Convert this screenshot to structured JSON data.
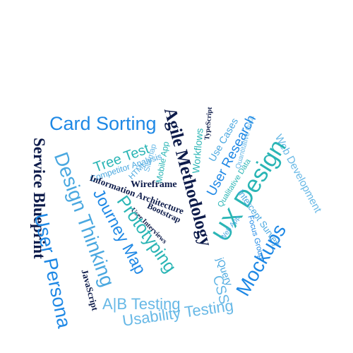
{
  "colors": {
    "navy": "#0d1b4a",
    "blue": "#1e88e5",
    "teal": "#2ab5b5",
    "sky": "#4aa8e0",
    "light_sky": "#67b8e6"
  },
  "words": [
    "Card Sorting",
    "Agile Methodology",
    "Service Blueprint",
    "Tree Test",
    "Competitor Analysis",
    "HTML",
    "Sitemap",
    "Mobile App",
    "TypeScript",
    "Workflows",
    "Use Cases",
    "Quantitative Data",
    "User Research",
    "Web Development",
    "UX Design",
    "Design Thinking",
    "Wireframe",
    "Information Architecture",
    "Bootstrap",
    "User Interviews",
    "Qualitative Data",
    "Web App",
    "Intercept Survey",
    "Focus Group",
    "Journey Map",
    "Prototyping",
    "User Blueprint",
    "User Persona",
    "Mockups",
    "jQuery",
    "JavaScript",
    "CSS",
    "A|B Testing",
    "Usability Testing"
  ]
}
